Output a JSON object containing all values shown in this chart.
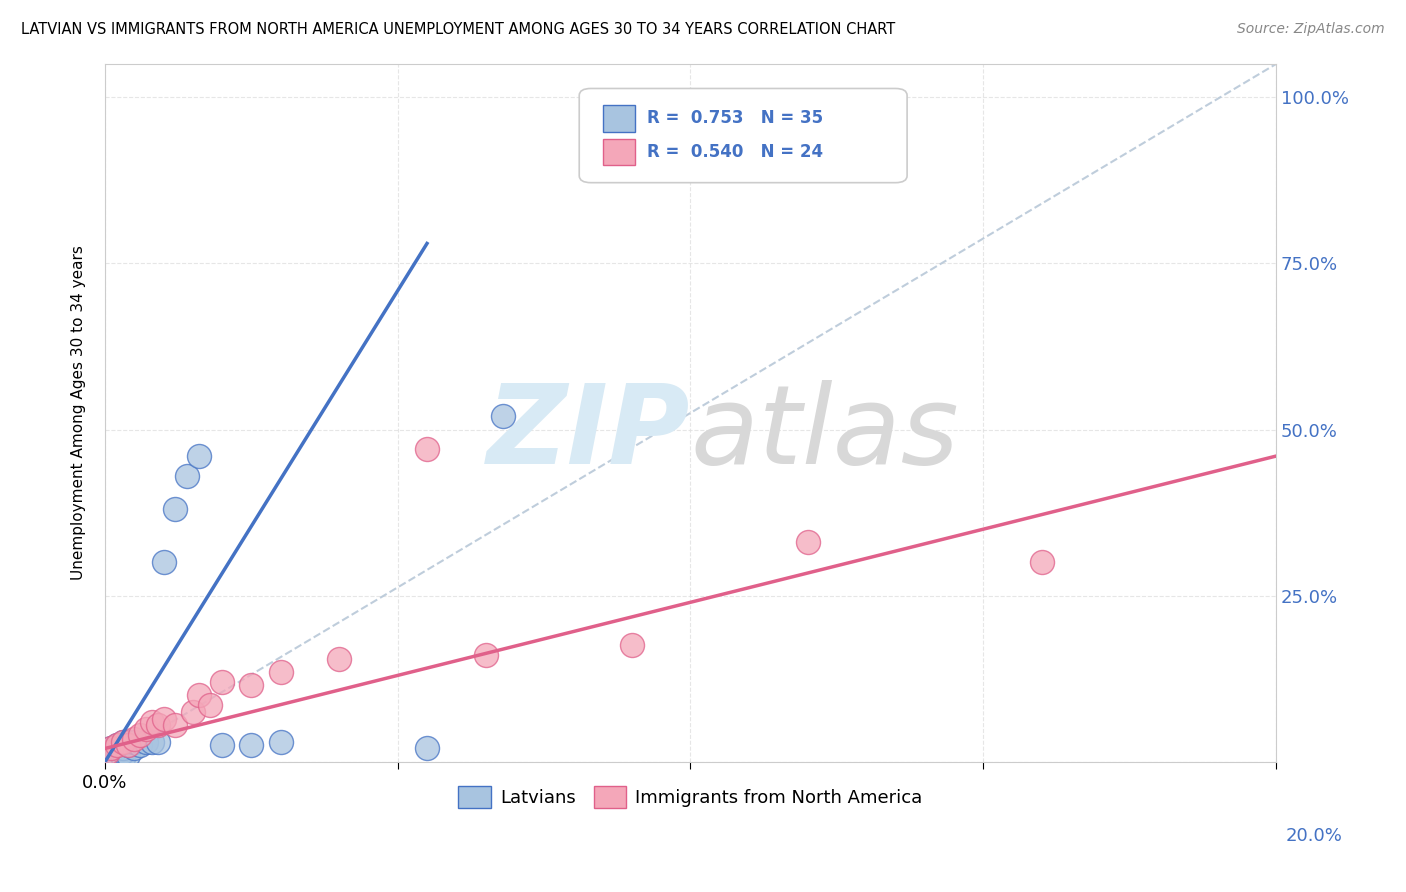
{
  "title": "LATVIAN VS IMMIGRANTS FROM NORTH AMERICA UNEMPLOYMENT AMONG AGES 30 TO 34 YEARS CORRELATION CHART",
  "source": "Source: ZipAtlas.com",
  "ylabel": "Unemployment Among Ages 30 to 34 years",
  "legend_latvians": "Latvians",
  "legend_immigrants": "Immigrants from North America",
  "r_latvians": "0.753",
  "n_latvians": "35",
  "r_immigrants": "0.540",
  "n_immigrants": "24",
  "color_latvians_fill": "#a8c4e0",
  "color_latvians_edge": "#4472c4",
  "color_immigrants_fill": "#f4a7b9",
  "color_immigrants_edge": "#e0608a",
  "color_blue_line": "#4472c4",
  "color_pink_line": "#e0608a",
  "color_ref_line": "#b8c8d8",
  "xlim": [
    0.0,
    0.2
  ],
  "ylim": [
    0.0,
    1.05
  ],
  "background_color": "#ffffff",
  "grid_color": "#e0e0e0",
  "watermark": "ZIPatlas",
  "watermark_color": "#d8eaf5",
  "latvians_x": [
    0.0005,
    0.0005,
    0.0005,
    0.0008,
    0.001,
    0.001,
    0.001,
    0.001,
    0.0015,
    0.002,
    0.002,
    0.002,
    0.002,
    0.003,
    0.003,
    0.003,
    0.003,
    0.004,
    0.004,
    0.004,
    0.005,
    0.005,
    0.006,
    0.007,
    0.008,
    0.009,
    0.01,
    0.012,
    0.014,
    0.016,
    0.02,
    0.025,
    0.03,
    0.055,
    0.068
  ],
  "latvians_y": [
    0.005,
    0.01,
    0.015,
    0.008,
    0.005,
    0.01,
    0.015,
    0.02,
    0.01,
    0.005,
    0.01,
    0.02,
    0.025,
    0.005,
    0.015,
    0.02,
    0.03,
    0.01,
    0.025,
    0.03,
    0.02,
    0.03,
    0.025,
    0.03,
    0.03,
    0.03,
    0.3,
    0.38,
    0.43,
    0.46,
    0.025,
    0.025,
    0.03,
    0.02,
    0.52
  ],
  "immigrants_x": [
    0.0005,
    0.001,
    0.002,
    0.003,
    0.004,
    0.005,
    0.006,
    0.007,
    0.008,
    0.009,
    0.01,
    0.012,
    0.015,
    0.016,
    0.018,
    0.02,
    0.025,
    0.03,
    0.04,
    0.055,
    0.065,
    0.09,
    0.12,
    0.16
  ],
  "immigrants_y": [
    0.015,
    0.02,
    0.025,
    0.03,
    0.025,
    0.035,
    0.04,
    0.05,
    0.06,
    0.055,
    0.065,
    0.055,
    0.075,
    0.1,
    0.085,
    0.12,
    0.115,
    0.135,
    0.155,
    0.47,
    0.16,
    0.175,
    0.33,
    0.3
  ],
  "blue_line_x": [
    0.0,
    0.055
  ],
  "blue_line_y": [
    0.0,
    0.78
  ],
  "pink_line_x": [
    0.0,
    0.2
  ],
  "pink_line_y": [
    0.02,
    0.46
  ]
}
